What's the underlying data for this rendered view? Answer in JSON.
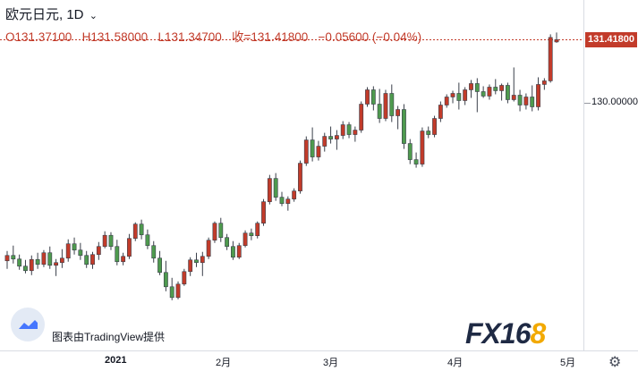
{
  "header": {
    "title": "欧元日元, 1D",
    "open": "O131.37100",
    "high": "H131.58000",
    "low": "L131.34700",
    "close": "收=131.41800",
    "change": "−0.05600 (−0.04%)"
  },
  "price_axis": {
    "last_price_label": "131.41800",
    "tick_label": "130.00000"
  },
  "time_axis": {
    "labels": [
      "2021",
      "2月",
      "3月",
      "4月",
      "5月"
    ]
  },
  "credit": "图表由TradingView提供",
  "watermark": {
    "text_main": "FX16",
    "text_accent": "8"
  },
  "icons": {
    "settings": "gear-icon",
    "tv_logo": "tradingview-logo-icon",
    "dropdown": "chevron-down-icon"
  },
  "colors": {
    "up": "#c23b2a",
    "down": "#4e9a4e",
    "dashed_line": "#c23b2a"
  },
  "chart_data": {
    "type": "candlestick",
    "title": "欧元日元, 1D",
    "ylim": [
      125.2,
      131.9
    ],
    "y_tick": 130.0,
    "last_price": 131.418,
    "x_labels": [
      {
        "label": "2021",
        "index": 8
      },
      {
        "label": "2月",
        "index": 30
      },
      {
        "label": "3月",
        "index": 50
      },
      {
        "label": "4月",
        "index": 72
      },
      {
        "label": "5月",
        "index": 93
      }
    ],
    "candles": [
      [
        126.48,
        126.7,
        126.3,
        126.6
      ],
      [
        126.6,
        126.82,
        126.42,
        126.52
      ],
      [
        126.52,
        126.62,
        126.28,
        126.36
      ],
      [
        126.36,
        126.5,
        126.2,
        126.26
      ],
      [
        126.26,
        126.6,
        126.16,
        126.51
      ],
      [
        126.51,
        126.66,
        126.3,
        126.4
      ],
      [
        126.4,
        126.72,
        126.34,
        126.66
      ],
      [
        126.66,
        126.8,
        126.3,
        126.38
      ],
      [
        126.38,
        126.52,
        126.14,
        126.44
      ],
      [
        126.44,
        126.74,
        126.32,
        126.54
      ],
      [
        126.54,
        126.96,
        126.46,
        126.86
      ],
      [
        126.86,
        127.0,
        126.62,
        126.72
      ],
      [
        126.72,
        126.88,
        126.5,
        126.6
      ],
      [
        126.6,
        126.7,
        126.32,
        126.4
      ],
      [
        126.4,
        126.68,
        126.3,
        126.62
      ],
      [
        126.62,
        126.9,
        126.5,
        126.8
      ],
      [
        126.8,
        127.14,
        126.76,
        127.05
      ],
      [
        127.05,
        127.12,
        126.72,
        126.8
      ],
      [
        126.8,
        126.95,
        126.38,
        126.46
      ],
      [
        126.46,
        126.66,
        126.38,
        126.58
      ],
      [
        126.58,
        127.08,
        126.52,
        126.98
      ],
      [
        126.98,
        127.34,
        126.92,
        127.3
      ],
      [
        127.3,
        127.4,
        126.96,
        127.06
      ],
      [
        127.06,
        127.18,
        126.74,
        126.82
      ],
      [
        126.82,
        126.92,
        126.44,
        126.54
      ],
      [
        126.54,
        126.7,
        126.16,
        126.22
      ],
      [
        126.22,
        126.48,
        125.8,
        125.9
      ],
      [
        125.9,
        126.1,
        125.6,
        125.66
      ],
      [
        125.66,
        126.02,
        125.62,
        125.96
      ],
      [
        125.96,
        126.3,
        125.92,
        126.24
      ],
      [
        126.24,
        126.56,
        126.14,
        126.5
      ],
      [
        126.5,
        126.66,
        126.34,
        126.44
      ],
      [
        126.44,
        126.68,
        126.14,
        126.58
      ],
      [
        126.58,
        127.0,
        126.52,
        126.94
      ],
      [
        126.94,
        127.36,
        126.88,
        127.32
      ],
      [
        127.32,
        127.44,
        126.9,
        127.0
      ],
      [
        127.0,
        127.08,
        126.72,
        126.8
      ],
      [
        126.8,
        126.92,
        126.5,
        126.56
      ],
      [
        126.56,
        126.88,
        126.52,
        126.82
      ],
      [
        126.82,
        127.16,
        126.78,
        127.1
      ],
      [
        127.1,
        127.2,
        126.94,
        127.04
      ],
      [
        127.04,
        127.36,
        126.98,
        127.32
      ],
      [
        127.32,
        127.86,
        127.26,
        127.8
      ],
      [
        127.8,
        128.4,
        127.74,
        128.32
      ],
      [
        128.32,
        128.44,
        127.82,
        127.9
      ],
      [
        127.9,
        128.02,
        127.7,
        127.76
      ],
      [
        127.76,
        127.92,
        127.6,
        127.86
      ],
      [
        127.86,
        128.1,
        127.8,
        128.04
      ],
      [
        128.04,
        128.72,
        127.98,
        128.66
      ],
      [
        128.66,
        129.26,
        128.6,
        129.18
      ],
      [
        129.18,
        129.46,
        128.7,
        128.8
      ],
      [
        128.8,
        129.16,
        128.72,
        129.04
      ],
      [
        129.04,
        129.34,
        128.92,
        129.26
      ],
      [
        129.26,
        129.48,
        129.1,
        129.2
      ],
      [
        129.2,
        129.4,
        128.96,
        129.28
      ],
      [
        129.28,
        129.6,
        129.2,
        129.52
      ],
      [
        129.52,
        129.58,
        129.22,
        129.3
      ],
      [
        129.3,
        129.48,
        129.14,
        129.4
      ],
      [
        129.4,
        130.04,
        129.34,
        129.98
      ],
      [
        129.98,
        130.36,
        129.92,
        130.3
      ],
      [
        130.3,
        130.38,
        129.84,
        129.98
      ],
      [
        129.98,
        130.32,
        129.56,
        129.66
      ],
      [
        129.66,
        130.3,
        129.6,
        130.22
      ],
      [
        130.22,
        130.42,
        129.58,
        129.72
      ],
      [
        129.72,
        129.94,
        129.42,
        129.86
      ],
      [
        129.86,
        129.98,
        128.98,
        129.1
      ],
      [
        129.1,
        129.2,
        128.64,
        128.74
      ],
      [
        128.74,
        128.9,
        128.56,
        128.64
      ],
      [
        128.64,
        129.46,
        128.58,
        129.38
      ],
      [
        129.38,
        129.48,
        129.22,
        129.3
      ],
      [
        129.3,
        129.72,
        129.24,
        129.66
      ],
      [
        129.66,
        130.04,
        129.58,
        129.96
      ],
      [
        129.96,
        130.2,
        129.9,
        130.14
      ],
      [
        130.14,
        130.28,
        130.0,
        130.22
      ],
      [
        130.22,
        130.46,
        129.86,
        130.06
      ],
      [
        130.06,
        130.36,
        129.96,
        130.3
      ],
      [
        130.3,
        130.52,
        130.12,
        130.44
      ],
      [
        130.44,
        130.56,
        129.8,
        130.26
      ],
      [
        130.26,
        130.38,
        130.12,
        130.16
      ],
      [
        130.16,
        130.42,
        130.08,
        130.36
      ],
      [
        130.36,
        130.54,
        130.2,
        130.28
      ],
      [
        130.28,
        130.44,
        130.06,
        130.4
      ],
      [
        130.4,
        130.46,
        130.0,
        130.08
      ],
      [
        130.08,
        130.8,
        130.04,
        130.18
      ],
      [
        130.18,
        130.3,
        129.82,
        129.96
      ],
      [
        129.96,
        130.22,
        129.86,
        130.14
      ],
      [
        130.14,
        130.4,
        129.82,
        129.92
      ],
      [
        129.92,
        130.58,
        129.84,
        130.42
      ],
      [
        130.42,
        130.56,
        130.3,
        130.5
      ],
      [
        130.5,
        131.54,
        130.46,
        131.47
      ],
      [
        131.37,
        131.58,
        131.35,
        131.42
      ]
    ]
  }
}
